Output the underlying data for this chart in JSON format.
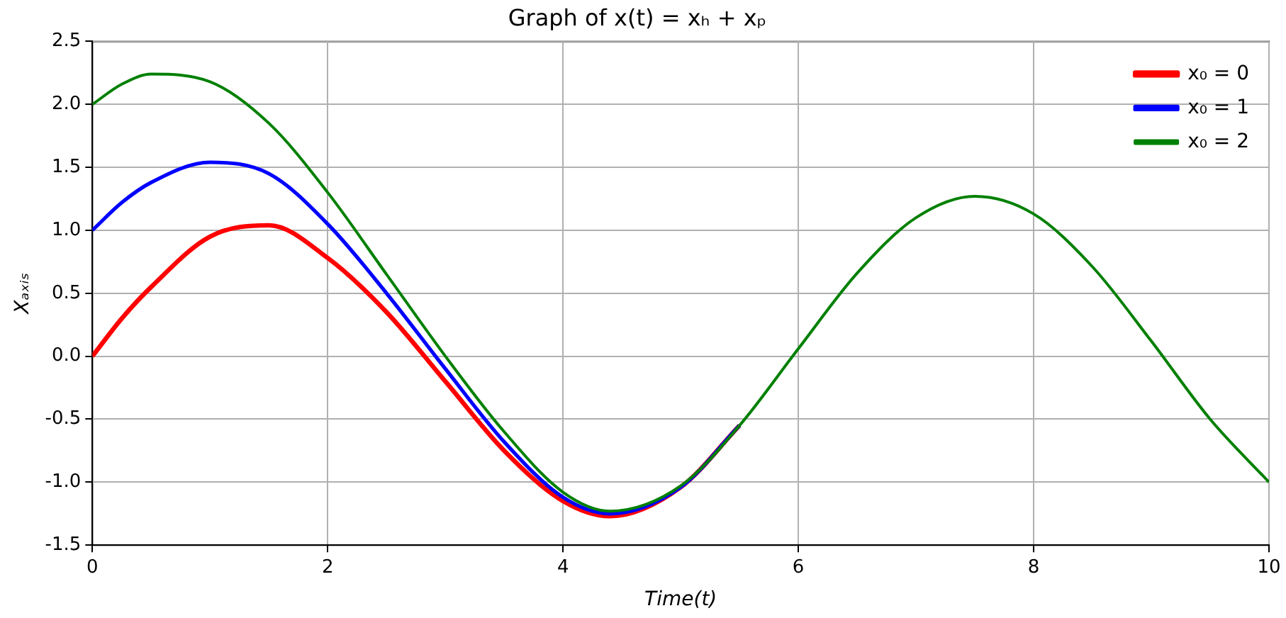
{
  "chart_data": {
    "type": "line",
    "title": "Graph of x(t) = xₕ + xₚ",
    "xlabel": "Time(t)",
    "ylabel": "Xₐₓᵢₛ",
    "x": [
      0,
      0.25,
      0.5,
      1,
      1.5,
      2,
      2.5,
      3,
      3.5,
      4,
      4.4,
      5,
      5.5,
      6,
      6.5,
      7,
      7.5,
      8,
      8.5,
      9,
      9.5,
      10
    ],
    "series": [
      {
        "name": "x₀ = 0",
        "color": "#ff0000",
        "values": [
          0,
          0.3,
          0.55,
          0.95,
          1.04,
          0.78,
          0.35,
          -0.2,
          -0.75,
          -1.15,
          -1.27,
          -1.04,
          -0.55,
          null,
          null,
          null,
          null,
          null,
          null,
          null,
          null,
          null
        ]
      },
      {
        "name": "x₀ = 1",
        "color": "#0000ff",
        "values": [
          1.0,
          1.22,
          1.38,
          1.54,
          1.45,
          1.05,
          0.5,
          -0.1,
          -0.68,
          -1.12,
          -1.25,
          -1.04,
          -0.55,
          null,
          null,
          null,
          null,
          null,
          null,
          null,
          null,
          null
        ]
      },
      {
        "name": "x₀ = 2",
        "color": "#008000",
        "values": [
          2.0,
          2.16,
          2.24,
          2.18,
          1.85,
          1.3,
          0.65,
          0.0,
          -0.6,
          -1.08,
          -1.23,
          -1.03,
          -0.55,
          0.06,
          0.66,
          1.1,
          1.27,
          1.13,
          0.71,
          0.12,
          -0.5,
          -1.0
        ]
      }
    ],
    "xlim": [
      0,
      10
    ],
    "xticks": [
      0,
      2,
      4,
      6,
      8,
      10
    ],
    "ylim": [
      -1.5,
      2.5
    ],
    "yticks": [
      {
        "value": -1.5,
        "label": "-1.5"
      },
      {
        "value": -1,
        "label": "-1.0"
      },
      {
        "value": -0.5,
        "label": "-0.5"
      },
      {
        "value": 0,
        "label": "0.0"
      },
      {
        "value": 0.5,
        "label": "0.5"
      },
      {
        "value": 1,
        "label": "1.0"
      },
      {
        "value": 1.5,
        "label": "1.5"
      },
      {
        "value": 2,
        "label": "2.0"
      },
      {
        "value": 2.5,
        "label": "2.5"
      }
    ],
    "grid": true,
    "legend": "top right",
    "marker": "none",
    "line_style": "solid"
  }
}
